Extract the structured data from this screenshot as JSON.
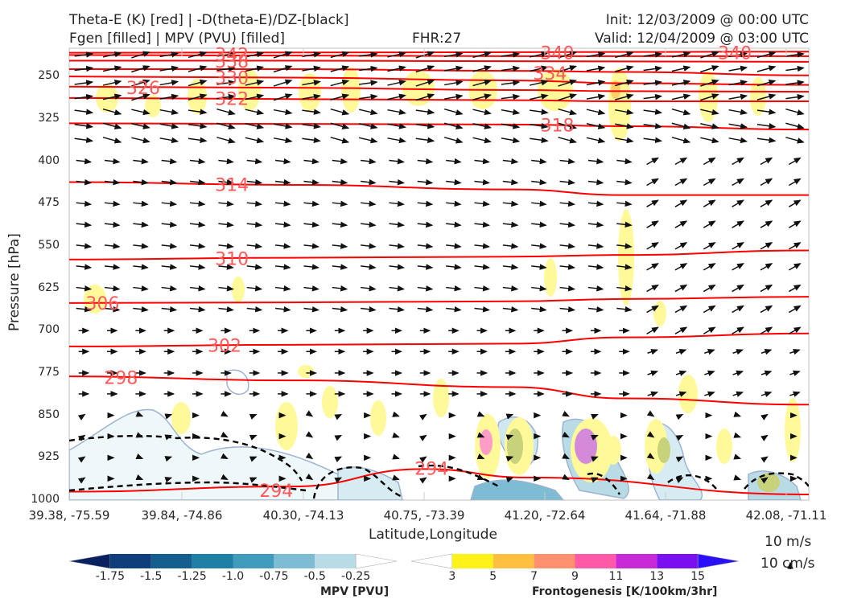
{
  "header": {
    "title_line1": "Theta-E (K) [red] | -D(theta-E)/DZ-[black]",
    "title_line2": "Fgen [filled] | MPV (PVU) [filled]",
    "fhr": "FHR:27",
    "init": "Init: 12/03/2009 @ 00:00 UTC",
    "valid": "Valid: 12/04/2009 @ 03:00 UTC"
  },
  "chart_data": {
    "type": "cross-section",
    "xlabel": "Latitude,Longitude",
    "ylabel": "Pressure [hPa]",
    "x_ticks": [
      "39.38, -75.59",
      "39.84, -74.86",
      "40.30, -74.13",
      "40.75, -73.39",
      "41.20, -72.64",
      "41.64, -71.88",
      "42.08, -71.11"
    ],
    "y_ticks": [
      250,
      325,
      400,
      475,
      550,
      625,
      700,
      775,
      850,
      925,
      1000
    ],
    "ylim": [
      1000,
      200
    ],
    "theta_e_contours": [
      {
        "label": "342",
        "points": [
          [
            0,
            212
          ],
          [
            0.3,
            213
          ],
          [
            0.6,
            214
          ],
          [
            0.75,
            214
          ],
          [
            1,
            214
          ]
        ]
      },
      {
        "label": "340",
        "points": [
          [
            0,
            208
          ],
          [
            0.6,
            207
          ],
          [
            1,
            206
          ]
        ]
      },
      {
        "label": "338",
        "points": [
          [
            0,
            222
          ],
          [
            0.3,
            222
          ],
          [
            0.6,
            223
          ],
          [
            1,
            224
          ]
        ]
      },
      {
        "label": "334",
        "points": [
          [
            0,
            237
          ],
          [
            0.3,
            237
          ],
          [
            0.6,
            240
          ],
          [
            0.75,
            242
          ],
          [
            1,
            248
          ]
        ]
      },
      {
        "label": "330",
        "points": [
          [
            0,
            250
          ],
          [
            0.3,
            252
          ],
          [
            0.6,
            257
          ],
          [
            0.75,
            262
          ],
          [
            1,
            265
          ]
        ]
      },
      {
        "label": "326",
        "points": [
          [
            0,
            268
          ],
          [
            0.3,
            270
          ],
          [
            0.6,
            274
          ],
          [
            0.75,
            276
          ],
          [
            1,
            277
          ]
        ]
      },
      {
        "label": "322",
        "points": [
          [
            0,
            288
          ],
          [
            0.3,
            290
          ],
          [
            0.6,
            292
          ],
          [
            0.75,
            294
          ],
          [
            1,
            294
          ]
        ]
      },
      {
        "label": "318",
        "points": [
          [
            0,
            333
          ],
          [
            0.3,
            334
          ],
          [
            0.6,
            335
          ],
          [
            0.75,
            338
          ],
          [
            1,
            344
          ]
        ]
      },
      {
        "label": "314",
        "points": [
          [
            0,
            437
          ],
          [
            0.3,
            442
          ],
          [
            0.6,
            450
          ],
          [
            0.75,
            460
          ],
          [
            1,
            460
          ]
        ]
      },
      {
        "label": "310",
        "points": [
          [
            0,
            574
          ],
          [
            0.3,
            571
          ],
          [
            0.6,
            569
          ],
          [
            0.75,
            566
          ],
          [
            1,
            558
          ]
        ]
      },
      {
        "label": "306",
        "points": [
          [
            0,
            651
          ],
          [
            0.3,
            650
          ],
          [
            0.6,
            648
          ],
          [
            0.75,
            644
          ],
          [
            1,
            640
          ]
        ]
      },
      {
        "label": "302",
        "points": [
          [
            0,
            728
          ],
          [
            0.3,
            725
          ],
          [
            0.6,
            723
          ],
          [
            0.75,
            712
          ],
          [
            1,
            705
          ]
        ]
      },
      {
        "label": "298",
        "points": [
          [
            0,
            781
          ],
          [
            0.3,
            788
          ],
          [
            0.6,
            800
          ],
          [
            0.75,
            820
          ],
          [
            1,
            831
          ]
        ]
      },
      {
        "label": "294",
        "points": [
          [
            0,
            985
          ],
          [
            0.3,
            976
          ],
          [
            0.48,
            945
          ],
          [
            0.62,
            960
          ],
          [
            1,
            990
          ]
        ]
      }
    ],
    "contour_labels": [
      {
        "text": "342",
        "x": 0.22,
        "p": 211
      },
      {
        "text": "338",
        "x": 0.22,
        "p": 223
      },
      {
        "text": "340",
        "x": 0.66,
        "p": 208
      },
      {
        "text": "340",
        "x": 0.9,
        "p": 208
      },
      {
        "text": "334",
        "x": 0.65,
        "p": 244
      },
      {
        "text": "330",
        "x": 0.22,
        "p": 252
      },
      {
        "text": "326",
        "x": 0.1,
        "p": 270
      },
      {
        "text": "322",
        "x": 0.22,
        "p": 289
      },
      {
        "text": "318",
        "x": 0.66,
        "p": 336
      },
      {
        "text": "314",
        "x": 0.22,
        "p": 441
      },
      {
        "text": "310",
        "x": 0.22,
        "p": 572
      },
      {
        "text": "306",
        "x": 0.045,
        "p": 651
      },
      {
        "text": "302",
        "x": 0.21,
        "p": 726
      },
      {
        "text": "298",
        "x": 0.07,
        "p": 783
      },
      {
        "text": "294",
        "x": 0.49,
        "p": 944
      },
      {
        "text": "294",
        "x": 0.28,
        "p": 983
      }
    ],
    "mpv_colorbar": {
      "title": "MPV [PVU]",
      "ticks": [
        "-1.75",
        "-1.5",
        "-1.25",
        "-1.0",
        "-0.75",
        "-0.5",
        "-0.25"
      ],
      "colors": [
        "#08225f",
        "#0e3f7a",
        "#155f8f",
        "#1f7fa5",
        "#3f9cbc",
        "#7dbcd2",
        "#b9dbe6",
        "#ffffff"
      ]
    },
    "fgen_colorbar": {
      "title": "Frontogenesis [K/100km/3hr]",
      "ticks": [
        "3",
        "5",
        "7",
        "9",
        "11",
        "13",
        "15"
      ],
      "colors": [
        "#ffffff",
        "#fff21a",
        "#ffc040",
        "#ff9070",
        "#ff5aa8",
        "#c82ad8",
        "#7a10f0",
        "#2a10f8"
      ]
    },
    "reference_vector": {
      "top": "10 m/s",
      "bottom": "10 cm/s"
    }
  }
}
